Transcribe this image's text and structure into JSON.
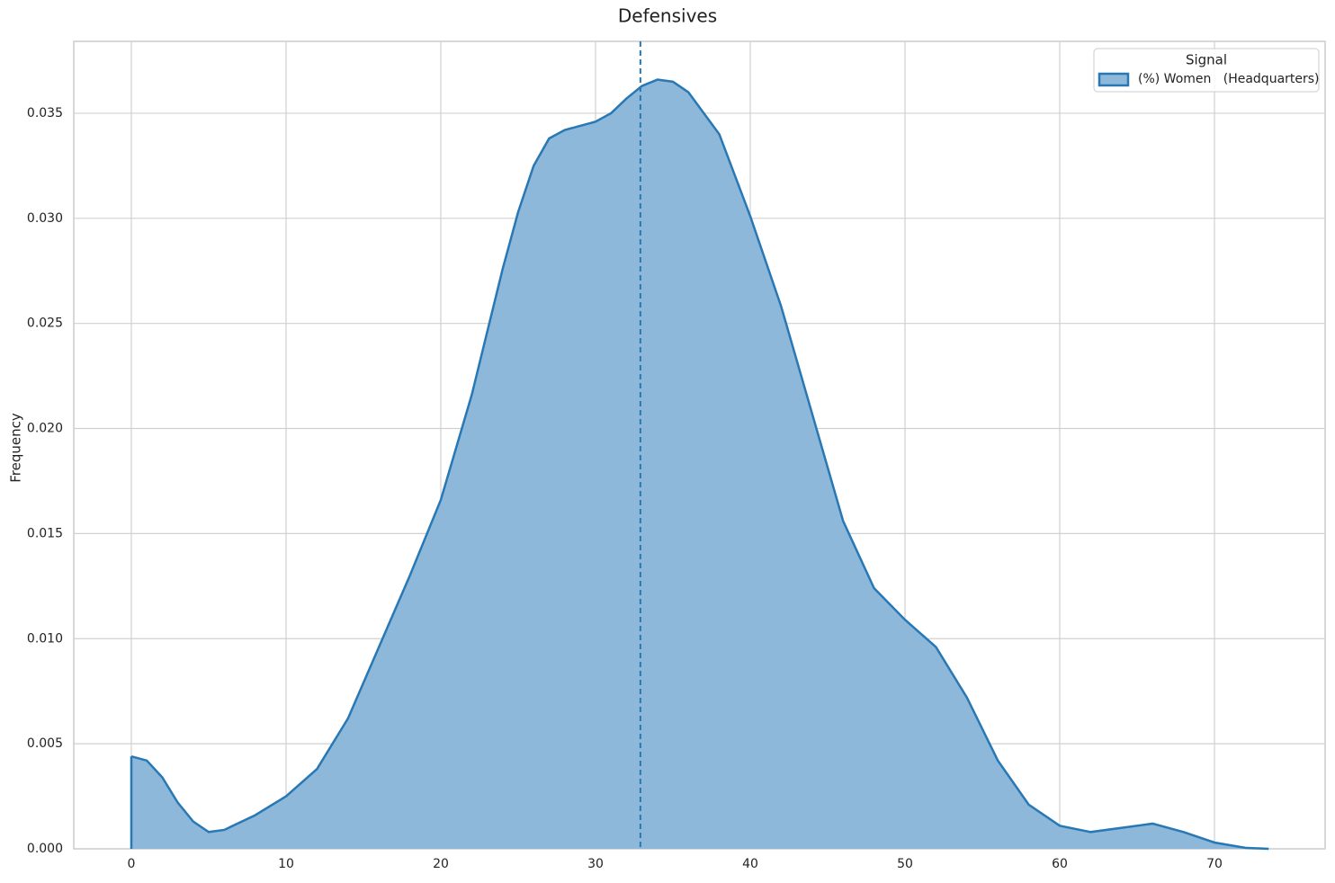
{
  "chart_data": {
    "type": "area",
    "title": "Defensives",
    "y_label": "Frequency",
    "legend_title": "Signal",
    "legend_position": "upper right",
    "grid": true,
    "x": [
      0,
      1,
      2,
      3,
      4,
      5,
      6,
      8,
      10,
      12,
      14,
      16,
      18,
      20,
      22,
      24,
      25,
      26,
      27,
      28,
      30,
      31,
      32,
      33,
      34,
      35,
      36,
      38,
      40,
      42,
      44,
      46,
      48,
      50,
      52,
      54,
      56,
      58,
      60,
      62,
      64,
      66,
      68,
      70,
      72,
      73.5
    ],
    "series": [
      {
        "name": "(%) Women   (Headquarters)",
        "color": "#2878b5",
        "fill": "#8db8d9",
        "values": [
          0.0044,
          0.0042,
          0.0034,
          0.0022,
          0.0013,
          0.0008,
          0.0009,
          0.0016,
          0.0025,
          0.0038,
          0.0062,
          0.0096,
          0.013,
          0.0166,
          0.0216,
          0.0276,
          0.0303,
          0.0325,
          0.0338,
          0.0342,
          0.0346,
          0.035,
          0.0357,
          0.0363,
          0.0366,
          0.0365,
          0.036,
          0.034,
          0.0301,
          0.0258,
          0.0207,
          0.0156,
          0.0124,
          0.0109,
          0.0096,
          0.0072,
          0.0042,
          0.0021,
          0.0011,
          0.0008,
          0.001,
          0.0012,
          0.0008,
          0.0003,
          5e-05,
          0
        ]
      }
    ],
    "vline": 32.9,
    "xlim": [
      -3.72,
      77.15
    ],
    "ylim": [
      0,
      0.03842
    ],
    "xticks": [
      0,
      10,
      20,
      30,
      40,
      50,
      60,
      70
    ],
    "yticks": [
      {
        "value": 0,
        "label": "0.000"
      },
      {
        "value": 0.005,
        "label": "0.005"
      },
      {
        "value": 0.01,
        "label": "0.010"
      },
      {
        "value": 0.015,
        "label": "0.015"
      },
      {
        "value": 0.02,
        "label": "0.020"
      },
      {
        "value": 0.025,
        "label": "0.025"
      },
      {
        "value": 0.03,
        "label": "0.030"
      },
      {
        "value": 0.035,
        "label": "0.035"
      }
    ]
  }
}
